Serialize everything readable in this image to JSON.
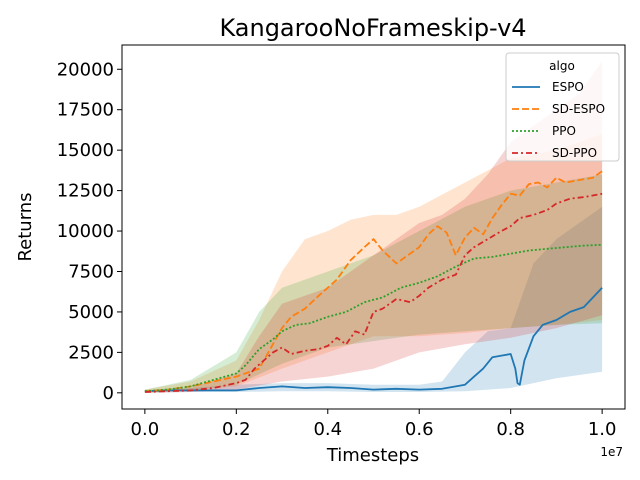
{
  "chart_data": {
    "type": "line",
    "title": "KangarooNoFrameskip-v4",
    "xlabel": "Timesteps",
    "ylabel": "Returns",
    "x_offset_text": "1e7",
    "xlim": [
      -0.05,
      1.05
    ],
    "ylim": [
      -1000,
      21500
    ],
    "xticks": [
      0.0,
      0.2,
      0.4,
      0.6,
      0.8,
      1.0
    ],
    "xtick_labels": [
      "0.0",
      "0.2",
      "0.4",
      "0.6",
      "0.8",
      "1.0"
    ],
    "yticks": [
      0,
      2500,
      5000,
      7500,
      10000,
      12500,
      15000,
      17500,
      20000
    ],
    "ytick_labels": [
      "0",
      "2500",
      "5000",
      "7500",
      "10000",
      "12500",
      "15000",
      "17500",
      "20000"
    ],
    "grid": false,
    "legend": {
      "title": "algo",
      "placement": "top-right"
    },
    "series": [
      {
        "name": "ESPO",
        "color": "#1f77b4",
        "dash": "solid",
        "points": [
          [
            0.0,
            100
          ],
          [
            0.05,
            150
          ],
          [
            0.1,
            150
          ],
          [
            0.15,
            150
          ],
          [
            0.2,
            150
          ],
          [
            0.25,
            300
          ],
          [
            0.3,
            400
          ],
          [
            0.35,
            300
          ],
          [
            0.4,
            350
          ],
          [
            0.45,
            300
          ],
          [
            0.5,
            200
          ],
          [
            0.55,
            250
          ],
          [
            0.6,
            200
          ],
          [
            0.65,
            250
          ],
          [
            0.68,
            400
          ],
          [
            0.7,
            500
          ],
          [
            0.72,
            1000
          ],
          [
            0.74,
            1500
          ],
          [
            0.76,
            2200
          ],
          [
            0.78,
            2300
          ],
          [
            0.8,
            2400
          ],
          [
            0.81,
            1500
          ],
          [
            0.815,
            600
          ],
          [
            0.82,
            500
          ],
          [
            0.83,
            2000
          ],
          [
            0.85,
            3500
          ],
          [
            0.87,
            4200
          ],
          [
            0.9,
            4500
          ],
          [
            0.93,
            5000
          ],
          [
            0.96,
            5300
          ],
          [
            1.0,
            6500
          ]
        ],
        "lower": [
          [
            0.0,
            0
          ],
          [
            0.1,
            50
          ],
          [
            0.2,
            50
          ],
          [
            0.3,
            100
          ],
          [
            0.4,
            100
          ],
          [
            0.5,
            50
          ],
          [
            0.6,
            50
          ],
          [
            0.7,
            100
          ],
          [
            0.8,
            300
          ],
          [
            0.85,
            600
          ],
          [
            0.9,
            900
          ],
          [
            1.0,
            1300
          ]
        ],
        "upper": [
          [
            0.0,
            150
          ],
          [
            0.1,
            300
          ],
          [
            0.2,
            500
          ],
          [
            0.3,
            600
          ],
          [
            0.4,
            600
          ],
          [
            0.5,
            500
          ],
          [
            0.6,
            500
          ],
          [
            0.65,
            700
          ],
          [
            0.7,
            2500
          ],
          [
            0.75,
            3800
          ],
          [
            0.8,
            4000
          ],
          [
            0.85,
            8000
          ],
          [
            0.9,
            9500
          ],
          [
            0.95,
            10500
          ],
          [
            1.0,
            11500
          ]
        ]
      },
      {
        "name": "SD-ESPO",
        "color": "#ff7f0e",
        "dash": "dashed",
        "points": [
          [
            0.0,
            100
          ],
          [
            0.05,
            200
          ],
          [
            0.1,
            400
          ],
          [
            0.15,
            700
          ],
          [
            0.2,
            1000
          ],
          [
            0.25,
            1500
          ],
          [
            0.28,
            3000
          ],
          [
            0.3,
            4000
          ],
          [
            0.32,
            4700
          ],
          [
            0.35,
            5200
          ],
          [
            0.38,
            6000
          ],
          [
            0.4,
            6500
          ],
          [
            0.42,
            7000
          ],
          [
            0.45,
            8200
          ],
          [
            0.48,
            9000
          ],
          [
            0.5,
            9500
          ],
          [
            0.52,
            8800
          ],
          [
            0.55,
            8000
          ],
          [
            0.58,
            8600
          ],
          [
            0.6,
            9000
          ],
          [
            0.62,
            9800
          ],
          [
            0.64,
            10300
          ],
          [
            0.66,
            9900
          ],
          [
            0.68,
            8500
          ],
          [
            0.7,
            9600
          ],
          [
            0.72,
            10200
          ],
          [
            0.74,
            9800
          ],
          [
            0.76,
            10800
          ],
          [
            0.78,
            11600
          ],
          [
            0.8,
            12300
          ],
          [
            0.82,
            12200
          ],
          [
            0.84,
            12900
          ],
          [
            0.86,
            13000
          ],
          [
            0.88,
            12700
          ],
          [
            0.9,
            13300
          ],
          [
            0.92,
            13000
          ],
          [
            0.94,
            13100
          ],
          [
            0.96,
            13200
          ],
          [
            0.98,
            13300
          ],
          [
            1.0,
            13700
          ]
        ],
        "lower": [
          [
            0.0,
            0
          ],
          [
            0.1,
            150
          ],
          [
            0.2,
            400
          ],
          [
            0.3,
            1500
          ],
          [
            0.4,
            2500
          ],
          [
            0.5,
            3500
          ],
          [
            0.6,
            3500
          ],
          [
            0.7,
            3700
          ],
          [
            0.8,
            4000
          ],
          [
            0.9,
            4200
          ],
          [
            1.0,
            4500
          ]
        ],
        "upper": [
          [
            0.0,
            200
          ],
          [
            0.1,
            700
          ],
          [
            0.2,
            2000
          ],
          [
            0.25,
            4500
          ],
          [
            0.3,
            7500
          ],
          [
            0.35,
            9500
          ],
          [
            0.4,
            10000
          ],
          [
            0.45,
            10700
          ],
          [
            0.5,
            11000
          ],
          [
            0.55,
            11000
          ],
          [
            0.6,
            11500
          ],
          [
            0.7,
            13000
          ],
          [
            0.8,
            14500
          ],
          [
            0.9,
            15000
          ],
          [
            1.0,
            16000
          ]
        ]
      },
      {
        "name": "PPO",
        "color": "#2ca02c",
        "dash": "dotted",
        "points": [
          [
            0.0,
            100
          ],
          [
            0.05,
            200
          ],
          [
            0.1,
            400
          ],
          [
            0.15,
            800
          ],
          [
            0.2,
            1200
          ],
          [
            0.22,
            1700
          ],
          [
            0.25,
            2700
          ],
          [
            0.28,
            3300
          ],
          [
            0.3,
            3800
          ],
          [
            0.33,
            4200
          ],
          [
            0.36,
            4300
          ],
          [
            0.4,
            4700
          ],
          [
            0.44,
            5000
          ],
          [
            0.48,
            5600
          ],
          [
            0.52,
            5900
          ],
          [
            0.56,
            6500
          ],
          [
            0.6,
            6800
          ],
          [
            0.64,
            7200
          ],
          [
            0.68,
            7800
          ],
          [
            0.72,
            8300
          ],
          [
            0.76,
            8400
          ],
          [
            0.8,
            8600
          ],
          [
            0.84,
            8800
          ],
          [
            0.88,
            8900
          ],
          [
            0.92,
            9000
          ],
          [
            0.96,
            9100
          ],
          [
            1.0,
            9150
          ]
        ],
        "lower": [
          [
            0.0,
            0
          ],
          [
            0.1,
            150
          ],
          [
            0.2,
            500
          ],
          [
            0.3,
            1800
          ],
          [
            0.4,
            2800
          ],
          [
            0.5,
            3200
          ],
          [
            0.6,
            3600
          ],
          [
            0.7,
            3800
          ],
          [
            0.8,
            4000
          ],
          [
            0.9,
            4200
          ],
          [
            1.0,
            4300
          ]
        ],
        "upper": [
          [
            0.0,
            200
          ],
          [
            0.1,
            800
          ],
          [
            0.2,
            2500
          ],
          [
            0.25,
            5000
          ],
          [
            0.3,
            6500
          ],
          [
            0.4,
            7500
          ],
          [
            0.5,
            8500
          ],
          [
            0.6,
            10000
          ],
          [
            0.7,
            11500
          ],
          [
            0.8,
            12500
          ],
          [
            0.9,
            13000
          ],
          [
            1.0,
            13500
          ]
        ]
      },
      {
        "name": "SD-PPO",
        "color": "#d62728",
        "dash": "dashdot",
        "points": [
          [
            0.0,
            50
          ],
          [
            0.05,
            100
          ],
          [
            0.1,
            150
          ],
          [
            0.15,
            300
          ],
          [
            0.2,
            600
          ],
          [
            0.22,
            800
          ],
          [
            0.24,
            1500
          ],
          [
            0.26,
            2000
          ],
          [
            0.28,
            2500
          ],
          [
            0.3,
            2800
          ],
          [
            0.32,
            2400
          ],
          [
            0.35,
            2600
          ],
          [
            0.38,
            2700
          ],
          [
            0.4,
            2900
          ],
          [
            0.42,
            3400
          ],
          [
            0.44,
            3000
          ],
          [
            0.46,
            3800
          ],
          [
            0.48,
            3600
          ],
          [
            0.5,
            5000
          ],
          [
            0.52,
            5200
          ],
          [
            0.55,
            5800
          ],
          [
            0.58,
            5600
          ],
          [
            0.6,
            6000
          ],
          [
            0.62,
            6500
          ],
          [
            0.65,
            7000
          ],
          [
            0.68,
            7300
          ],
          [
            0.7,
            8500
          ],
          [
            0.72,
            9000
          ],
          [
            0.75,
            9500
          ],
          [
            0.78,
            10000
          ],
          [
            0.8,
            10300
          ],
          [
            0.82,
            10800
          ],
          [
            0.85,
            11000
          ],
          [
            0.88,
            11300
          ],
          [
            0.9,
            11700
          ],
          [
            0.93,
            12000
          ],
          [
            0.96,
            12100
          ],
          [
            1.0,
            12300
          ]
        ],
        "lower": [
          [
            0.0,
            0
          ],
          [
            0.1,
            50
          ],
          [
            0.2,
            200
          ],
          [
            0.3,
            700
          ],
          [
            0.4,
            1000
          ],
          [
            0.5,
            1500
          ],
          [
            0.6,
            2500
          ],
          [
            0.7,
            3000
          ],
          [
            0.8,
            3400
          ],
          [
            0.9,
            4000
          ],
          [
            1.0,
            4800
          ]
        ],
        "upper": [
          [
            0.0,
            100
          ],
          [
            0.1,
            300
          ],
          [
            0.2,
            1200
          ],
          [
            0.25,
            3500
          ],
          [
            0.3,
            5500
          ],
          [
            0.35,
            6000
          ],
          [
            0.4,
            6500
          ],
          [
            0.45,
            7500
          ],
          [
            0.5,
            8500
          ],
          [
            0.55,
            9500
          ],
          [
            0.6,
            10500
          ],
          [
            0.65,
            11000
          ],
          [
            0.7,
            12000
          ],
          [
            0.75,
            13500
          ],
          [
            0.8,
            15500
          ],
          [
            0.85,
            16500
          ],
          [
            0.9,
            17500
          ],
          [
            0.95,
            18500
          ],
          [
            1.0,
            20500
          ]
        ]
      }
    ]
  }
}
